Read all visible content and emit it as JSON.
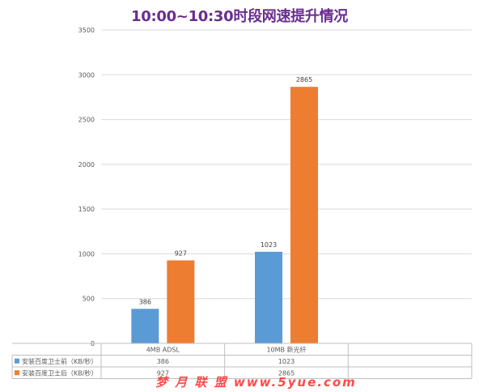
{
  "chart_data": {
    "type": "bar",
    "title": "10:00~10:30时段网速提升情况",
    "categories": [
      "4MB ADSL",
      "10MB 新光纤"
    ],
    "series": [
      {
        "name": "安装百度卫士前（KB/秒）",
        "values": [
          386,
          1023
        ],
        "color": "#5b9bd5"
      },
      {
        "name": "安装百度卫士后（KB/秒）",
        "values": [
          927,
          2865
        ],
        "color": "#ed7d31"
      }
    ],
    "ylim": [
      0,
      3500
    ],
    "yticks": [
      0,
      500,
      1000,
      1500,
      2000,
      2500,
      3000,
      3500
    ],
    "grid": true,
    "legend": "data-table-below",
    "xlabel": "",
    "ylabel": ""
  },
  "watermark": "梦 月 联 盟 www.5yue.com"
}
